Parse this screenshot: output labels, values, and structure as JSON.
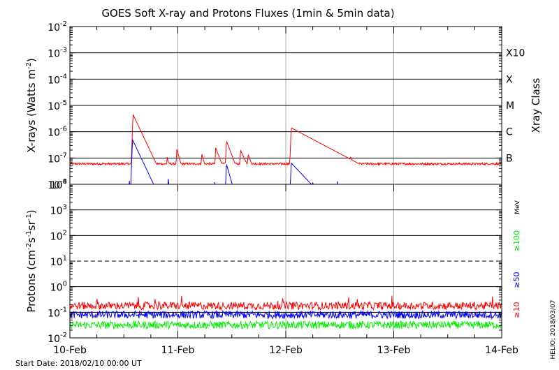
{
  "chart_data": [
    {
      "type": "line",
      "panel": "xray",
      "title": "GOES Soft X-ray and Protons Fluxes   (1min & 5min data)",
      "ylabel_base": "X-rays (Watts m",
      "ylabel_exp": "-2",
      "ylabel_end": ")",
      "yscale": "log",
      "ylim": [
        1e-08,
        0.01
      ],
      "y_ticks": [
        {
          "base": "10",
          "exp": "-2"
        },
        {
          "base": "10",
          "exp": "-3"
        },
        {
          "base": "10",
          "exp": "-4"
        },
        {
          "base": "10",
          "exp": "-5"
        },
        {
          "base": "10",
          "exp": "-6"
        },
        {
          "base": "10",
          "exp": "-7"
        },
        {
          "base": "10",
          "exp": "-8"
        }
      ],
      "xlim": [
        "2018-02-10",
        "2018-02-14"
      ],
      "right_axis_label": "Xray Class",
      "flare_classes": [
        {
          "label": "X10",
          "value": 0.001
        },
        {
          "label": "X",
          "value": 0.0001
        },
        {
          "label": "M",
          "value": 1e-05
        },
        {
          "label": "C",
          "value": 1e-06
        },
        {
          "label": "B",
          "value": 1e-07
        }
      ],
      "series": [
        {
          "color": "#ff0000",
          "baseline": 6e-08,
          "noise": 0.08,
          "peaks": [
            {
              "t": 0.585,
              "peak": 4.5e-06,
              "decay": 0.05
            },
            {
              "t": 0.68,
              "peak": 1.3e-07,
              "decay": 0.02
            },
            {
              "t": 0.75,
              "peak": 1.2e-07,
              "decay": 0.02
            },
            {
              "t": 0.9,
              "peak": 1.2e-07,
              "decay": 0.02
            },
            {
              "t": 0.99,
              "peak": 2.2e-07,
              "decay": 0.03
            },
            {
              "t": 1.22,
              "peak": 1.5e-07,
              "decay": 0.03
            },
            {
              "t": 1.35,
              "peak": 2.5e-07,
              "decay": 0.04
            },
            {
              "t": 1.45,
              "peak": 4.5e-07,
              "decay": 0.04
            },
            {
              "t": 1.58,
              "peak": 2e-07,
              "decay": 0.05
            },
            {
              "t": 1.65,
              "peak": 1.4e-07,
              "decay": 0.04
            },
            {
              "t": 2.05,
              "peak": 1.4e-06,
              "decay": 0.2
            },
            {
              "t": 2.48,
              "peak": 1.6e-07,
              "decay": 0.06
            },
            {
              "t": 2.6,
              "peak": 1.1e-07,
              "decay": 0.03
            }
          ]
        },
        {
          "color": "#0000ff",
          "baseline": 5e-09,
          "noise": 0.1,
          "peaks": [
            {
              "t": 0.58,
              "peak": 5e-07,
              "decay": 0.05
            },
            {
              "t": 0.55,
              "peak": 1.5e-08,
              "decay": 0.01
            },
            {
              "t": 0.91,
              "peak": 1.8e-08,
              "decay": 0.01
            },
            {
              "t": 1.45,
              "peak": 6e-08,
              "decay": 0.03
            },
            {
              "t": 1.34,
              "peak": 1.5e-08,
              "decay": 0.01
            },
            {
              "t": 2.05,
              "peak": 6.5e-08,
              "decay": 0.1
            },
            {
              "t": 2.25,
              "peak": 1.5e-08,
              "decay": 0.01
            },
            {
              "t": 2.48,
              "peak": 1.3e-08,
              "decay": 0.01
            }
          ]
        }
      ]
    },
    {
      "type": "line",
      "panel": "protons",
      "ylabel_base": "Protons (cm",
      "ylabel_parts": [
        {
          "t": "-2",
          "sup": true
        },
        {
          "t": "s",
          "sup": false
        },
        {
          "t": "-1",
          "sup": true
        },
        {
          "t": "sr",
          "sup": false
        },
        {
          "t": "-1",
          "sup": true
        }
      ],
      "ylabel_end": ")",
      "yscale": "log",
      "ylim": [
        0.01,
        10000
      ],
      "y_ticks": [
        {
          "base": "10",
          "exp": "4"
        },
        {
          "base": "10",
          "exp": "3"
        },
        {
          "base": "10",
          "exp": "2"
        },
        {
          "base": "10",
          "exp": "1"
        },
        {
          "base": "10",
          "exp": "0"
        },
        {
          "base": "10",
          "exp": "-1"
        },
        {
          "base": "10",
          "exp": "-2"
        }
      ],
      "threshold": 10,
      "unit": "MeV",
      "series": [
        {
          "name": "≥10",
          "color": "#ff0000",
          "level": 0.18,
          "noise": 0.3
        },
        {
          "name": "≥50",
          "color": "#0000ff",
          "level": 0.08,
          "noise": 0.3
        },
        {
          "name": "≥100",
          "color": "#00ee00",
          "level": 0.032,
          "noise": 0.3
        }
      ],
      "xlim": [
        "2018-02-10",
        "2018-02-14"
      ],
      "x_ticks": [
        "10-Feb",
        "11-Feb",
        "12-Feb",
        "13-Feb",
        "14-Feb"
      ]
    }
  ],
  "footer": {
    "start_date": "Start Date: 2018/02/10 00:00 UT",
    "credit": "HELIO; 2018/03/07"
  }
}
